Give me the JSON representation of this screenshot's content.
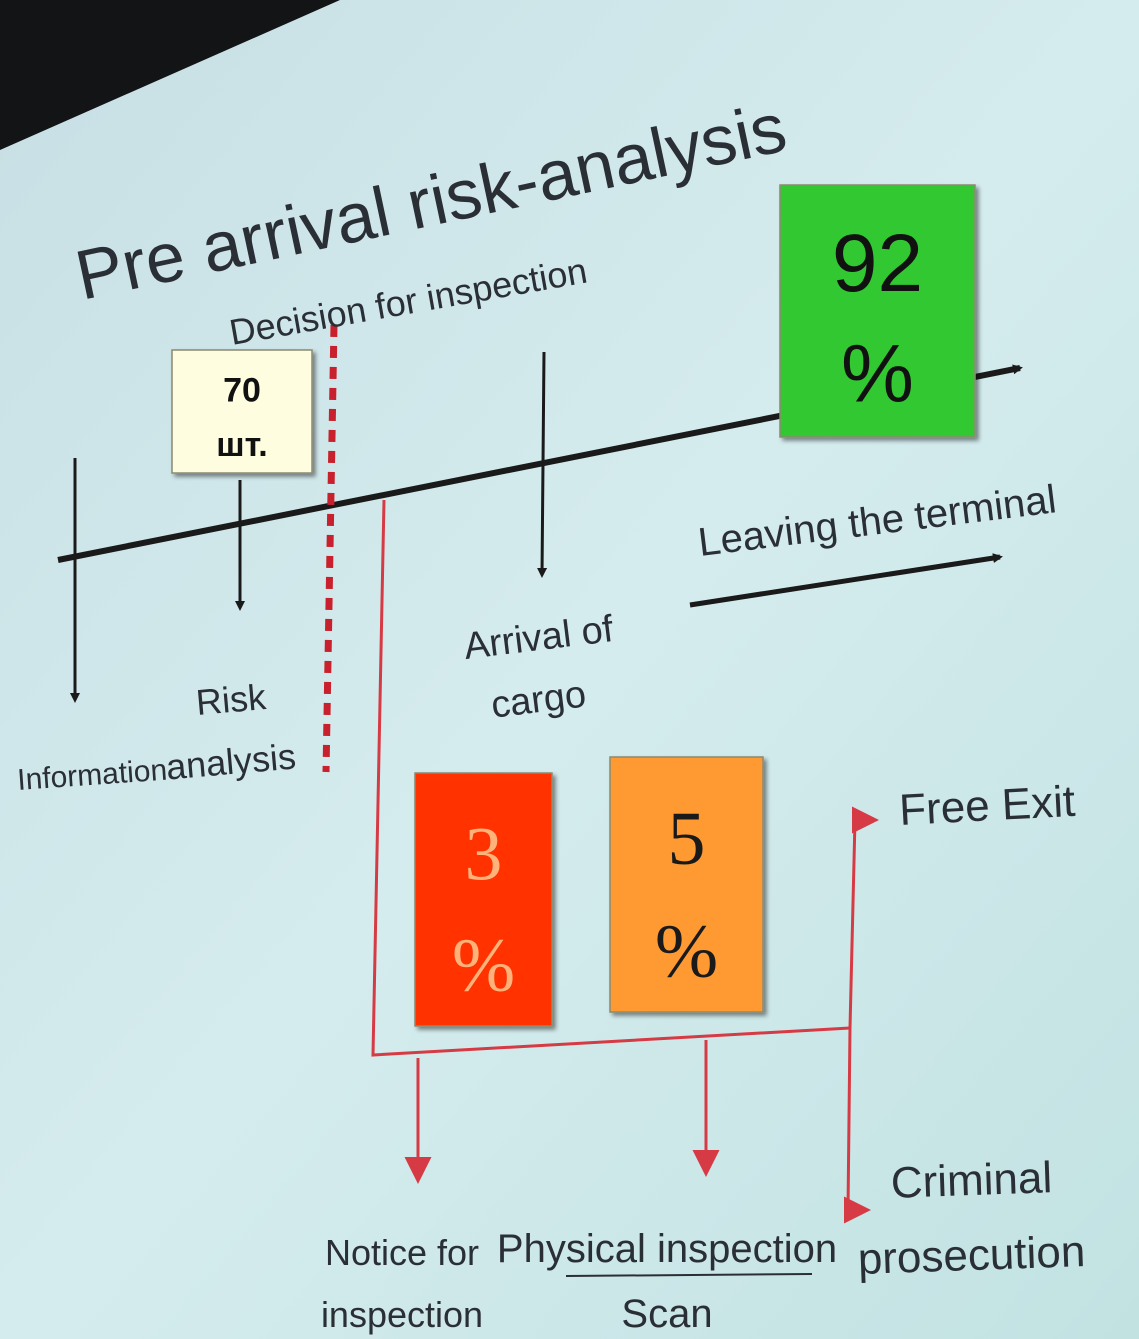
{
  "title": "Pre arrival risk-analysis",
  "decision": "Decision for inspection",
  "stages": [
    [
      "Information"
    ],
    [
      "Risk",
      "analysis"
    ],
    [
      "Arrival of",
      "cargo"
    ]
  ],
  "leaving": "Leaving the terminal",
  "outcomes": [
    [
      "Free Exit"
    ],
    [
      "Criminal",
      "prosecution"
    ],
    [
      "Notice for",
      "inspection"
    ],
    [
      "Physical inspection",
      "Scan"
    ]
  ],
  "overlays": [
    {
      "value": "70",
      "unit": "шт.",
      "color": "#fffde0",
      "text_color": "#111111"
    },
    {
      "value": "92",
      "unit": "%",
      "color": "#33c833",
      "text_color": "#111111"
    },
    {
      "value": "3",
      "unit": "%",
      "color": "#ff3300",
      "text_color": "#ffb27a"
    },
    {
      "value": "5",
      "unit": "%",
      "color": "#ff9933",
      "text_color": "#1a1a1a"
    }
  ]
}
